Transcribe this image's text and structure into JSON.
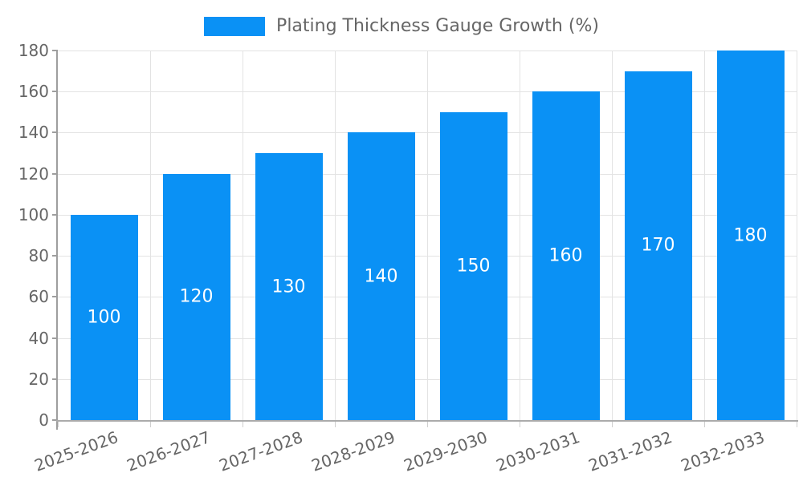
{
  "legend": {
    "label": "Plating Thickness Gauge Growth (%)"
  },
  "chart_data": {
    "type": "bar",
    "title": "Plating Thickness Gauge Growth (%)",
    "categories": [
      "2025-2026",
      "2026-2027",
      "2027-2028",
      "2028-2029",
      "2029-2030",
      "2030-2031",
      "2031-2032",
      "2032-2033"
    ],
    "values": [
      100,
      120,
      130,
      140,
      150,
      160,
      170,
      180
    ],
    "data_labels": [
      "100",
      "120",
      "130",
      "140",
      "150",
      "160",
      "170",
      "180"
    ],
    "yticks": [
      0,
      20,
      40,
      60,
      80,
      100,
      120,
      140,
      160,
      180
    ],
    "ylim": [
      0,
      180
    ],
    "xlabel": "",
    "ylabel": "",
    "grid": true,
    "legend_position": "top",
    "colors": {
      "bar": "#0a91f5",
      "data_label": "#ffffff",
      "grid": "#e3e3e3",
      "axis": "#9e9e9e",
      "tick_text": "#666666",
      "legend_text": "#666666",
      "background": "#ffffff"
    }
  }
}
